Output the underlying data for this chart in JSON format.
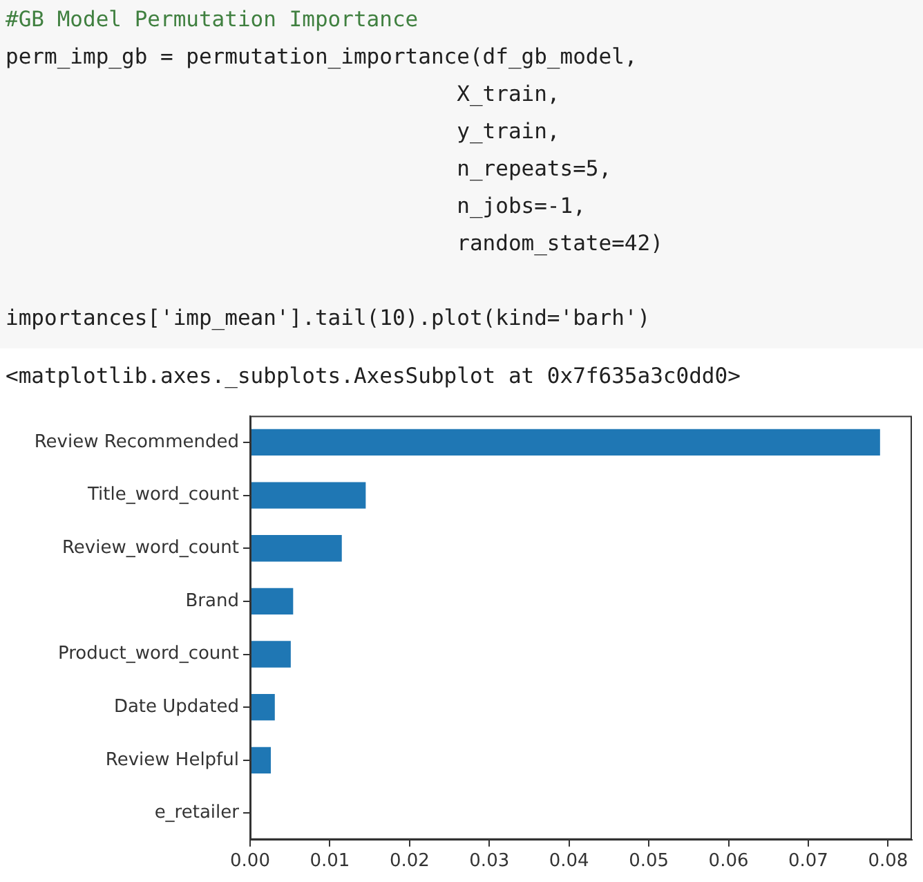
{
  "chart_data": {
    "type": "bar",
    "orientation": "horizontal",
    "annotations": [
      "#GB Model Permutation Importance",
      "perm_imp_gb = permutation_importance(df_gb_model,",
      "                                   X_train,",
      "                                   y_train,",
      "                                   n_repeats=5,",
      "                                   n_jobs=-1,",
      "                                   random_state=42)",
      "importances['imp_mean'].tail(10).plot(kind='barh')",
      "<matplotlib.axes._subplots.AxesSubplot at 0x7f635a3c0dd0>"
    ],
    "categories": [
      "Review Recommended",
      "Title_word_count",
      "Review_word_count",
      "Brand",
      "Product_word_count",
      "Date Updated",
      "Review Helpful",
      "e_retailer"
    ],
    "values": [
      0.079,
      0.0145,
      0.0115,
      0.0054,
      0.0051,
      0.0031,
      0.0026,
      0
    ],
    "color": "#1f77b4",
    "xlim": [
      0,
      0.083
    ],
    "xticks": [
      {
        "value": 0,
        "label": "0.00"
      },
      {
        "value": 0.01,
        "label": "0.01"
      },
      {
        "value": 0.02,
        "label": "0.02"
      },
      {
        "value": 0.03,
        "label": "0.03"
      },
      {
        "value": 0.04,
        "label": "0.04"
      },
      {
        "value": 0.05,
        "label": "0.05"
      },
      {
        "value": 0.06,
        "label": "0.06"
      },
      {
        "value": 0.07,
        "label": "0.07"
      },
      {
        "value": 0.08,
        "label": "0.08"
      }
    ],
    "grid": false,
    "legend": false
  }
}
